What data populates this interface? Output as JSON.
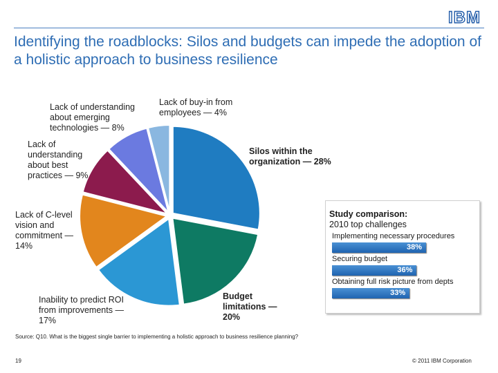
{
  "logo": "IBM",
  "title": "Identifying the roadblocks: Silos and budgets can impede the adoption of a holistic approach to business resilience",
  "chart_data": [
    {
      "type": "pie",
      "slices": [
        {
          "label": "Silos within the organization — 28%",
          "value": 28,
          "color": "#1f7cc1"
        },
        {
          "label": "Budget limitations — 20%",
          "value": 20,
          "color": "#0e7a63"
        },
        {
          "label": "Inability to predict ROI from improvements — 17%",
          "value": 17,
          "color": "#2b97d4"
        },
        {
          "label": "Lack of C-level vision and commitment — 14%",
          "value": 14,
          "color": "#e2861d"
        },
        {
          "label": "Lack of understanding about best practices — 9%",
          "value": 9,
          "color": "#8c1b4d"
        },
        {
          "label": "Lack of understanding about emerging technologies — 8%",
          "value": 8,
          "color": "#6b7ae0"
        },
        {
          "label": "Lack of buy-in from employees — 4%",
          "value": 4,
          "color": "#8ab7e0"
        }
      ]
    },
    {
      "type": "bar",
      "title": "Study comparison:",
      "subtitle": "2010 top challenges",
      "categories": [
        "Implementing necessary procedures",
        "Securing budget",
        "Obtaining full risk picture from depts"
      ],
      "values": [
        38,
        36,
        33
      ],
      "value_labels": [
        "38%",
        "36%",
        "33%"
      ],
      "color": "#2a74c2"
    }
  ],
  "source": "Source: Q10. What is the biggest single barrier to implementing a holistic approach to business resilience planning?",
  "page_number": "19",
  "copyright": "© 2011 IBM Corporation"
}
